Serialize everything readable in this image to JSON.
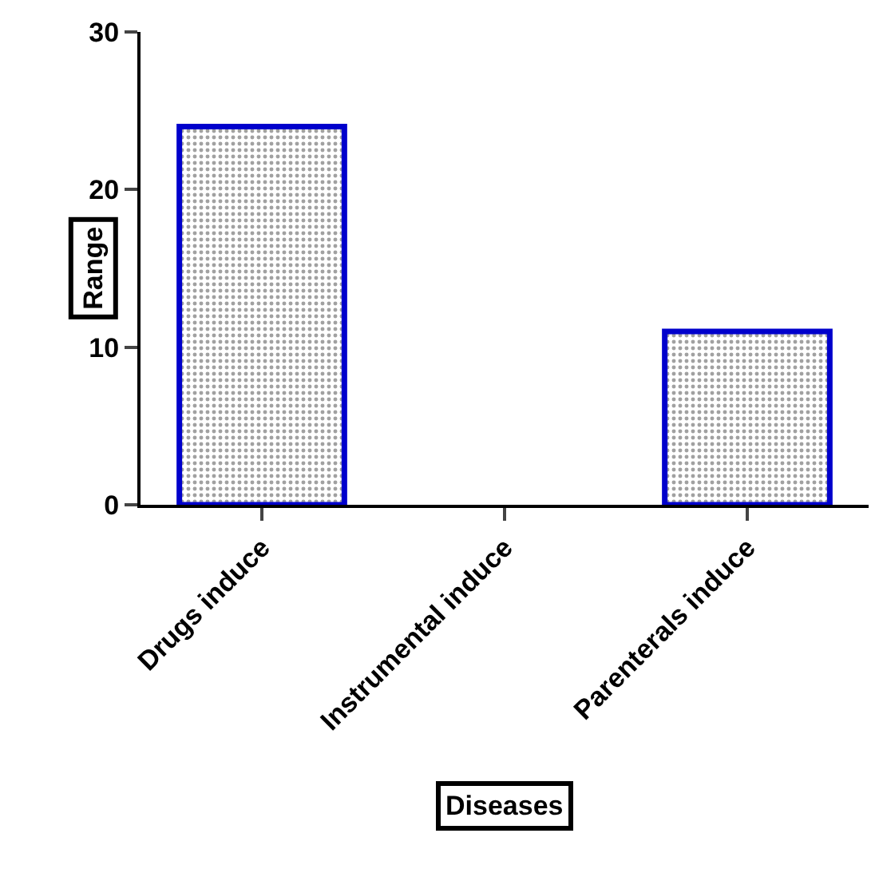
{
  "chart_data": {
    "type": "bar",
    "xlabel": "Diseases",
    "ylabel": "Range",
    "categories": [
      "Drugs induce",
      "Instrumental induce",
      "Parenterals induce"
    ],
    "values": [
      24,
      0,
      11
    ],
    "color": "#0000cc",
    "ylim": [
      0,
      30
    ],
    "yticks": [
      0,
      10,
      20,
      30
    ]
  }
}
